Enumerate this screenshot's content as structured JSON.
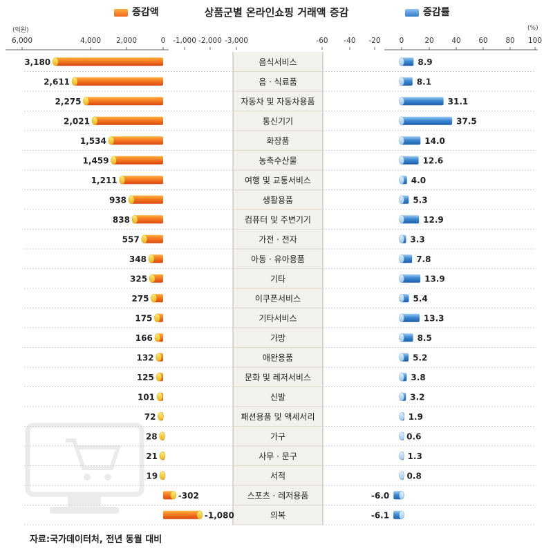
{
  "title": "상품군별 온라인쇼핑 거래액 증감",
  "legend": {
    "amount_label": "증감액",
    "rate_label": "증감률"
  },
  "left_axis": {
    "unit": "(억원)",
    "ticks": [
      "6,000",
      "4,000",
      "2,000",
      "0",
      "-1,000",
      "-2,000",
      "-3,000"
    ]
  },
  "right_axis": {
    "unit": "(%)",
    "ticks": [
      "-60",
      "-40",
      "-20",
      "0",
      "20",
      "40",
      "60",
      "80",
      "100"
    ]
  },
  "source": "자료:국가데이터처, 전년 동월 대비",
  "colors": {
    "amount_bar": "#f0641e",
    "amount_bar_light": "#ffb03c",
    "amount_cap": "#f4c430",
    "rate_bar": "#2f7ac8",
    "rate_bar_light": "#8fc4f0",
    "category_band": "#f3f1ec",
    "row_line": "#cfcfcf"
  },
  "chart_data": [
    {
      "type": "bar",
      "orientation": "horizontal",
      "name": "증감액",
      "unit": "억원",
      "categories": [
        "음식서비스",
        "음 · 식료품",
        "자동차 및 자동차용품",
        "통신기기",
        "화장품",
        "농축수산물",
        "여행 및 교통서비스",
        "생활용품",
        "컴퓨터 및 주변기기",
        "가전 · 전자",
        "아동 · 유아용품",
        "기타",
        "이쿠폰서비스",
        "기타서비스",
        "가방",
        "애완용품",
        "문화 및 레저서비스",
        "신발",
        "패션용품 및 액세서리",
        "가구",
        "사무 · 문구",
        "서적",
        "스포츠 · 레저용품",
        "의복"
      ],
      "values": [
        3180,
        2611,
        2275,
        2021,
        1534,
        1459,
        1211,
        938,
        838,
        557,
        348,
        325,
        275,
        175,
        166,
        132,
        125,
        101,
        72,
        28,
        21,
        19,
        -302,
        -1080
      ],
      "data_labels": [
        "3,180",
        "2,611",
        "2,275",
        "2,021",
        "1,534",
        "1,459",
        "1,211",
        "938",
        "838",
        "557",
        "348",
        "325",
        "275",
        "175",
        "166",
        "132",
        "125",
        "101",
        "72",
        "28",
        "21",
        "19",
        "-302",
        "-1,080"
      ],
      "xlim": [
        6000,
        -3000
      ]
    },
    {
      "type": "bar",
      "orientation": "horizontal",
      "name": "증감률",
      "unit": "%",
      "categories": [
        "음식서비스",
        "음 · 식료품",
        "자동차 및 자동차용품",
        "통신기기",
        "화장품",
        "농축수산물",
        "여행 및 교통서비스",
        "생활용품",
        "컴퓨터 및 주변기기",
        "가전 · 전자",
        "아동 · 유아용품",
        "기타",
        "이쿠폰서비스",
        "기타서비스",
        "가방",
        "애완용품",
        "문화 및 레저서비스",
        "신발",
        "패션용품 및 액세서리",
        "가구",
        "사무 · 문구",
        "서적",
        "스포츠 · 레저용품",
        "의복"
      ],
      "values": [
        8.9,
        8.1,
        31.1,
        37.5,
        14.0,
        12.6,
        4.0,
        5.3,
        12.9,
        3.3,
        7.8,
        13.9,
        5.4,
        13.3,
        8.5,
        5.2,
        3.8,
        3.2,
        1.9,
        0.6,
        1.3,
        0.8,
        -6.0,
        -6.1
      ],
      "data_labels": [
        "8.9",
        "8.1",
        "31.1",
        "37.5",
        "14.0",
        "12.6",
        "4.0",
        "5.3",
        "12.9",
        "3.3",
        "7.8",
        "13.9",
        "5.4",
        "13.3",
        "8.5",
        "5.2",
        "3.8",
        "3.2",
        "1.9",
        "0.6",
        "1.3",
        "0.8",
        "-6.0",
        "-6.1"
      ],
      "xlim": [
        -60,
        100
      ]
    }
  ]
}
